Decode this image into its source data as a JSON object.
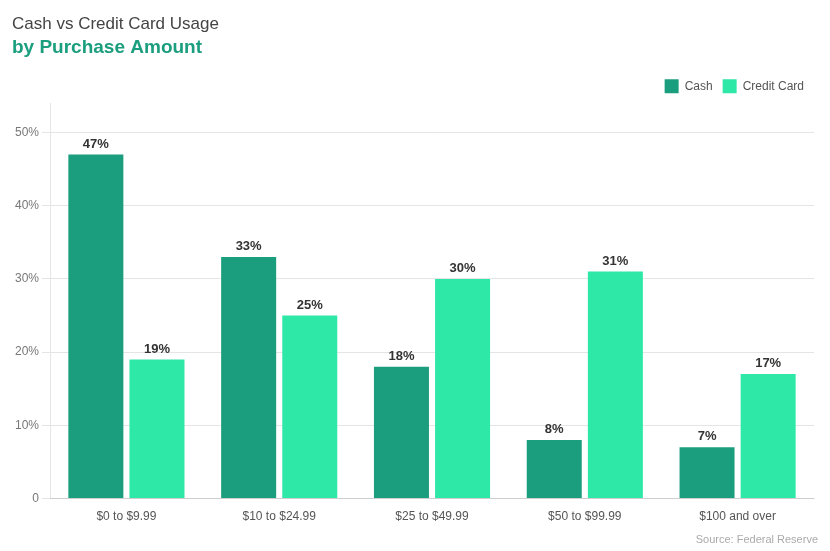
{
  "chart_data": {
    "type": "bar",
    "title": "Cash vs Credit Card Usage",
    "subtitle": "by Purchase Amount",
    "categories": [
      "$0 to $9.99",
      "$10 to $24.99",
      "$25 to $49.99",
      "$50 to $99.99",
      "$100 and over"
    ],
    "series": [
      {
        "name": "Cash",
        "color": "#1a9e7e",
        "values": [
          47,
          33,
          18,
          8,
          7
        ],
        "value_labels": [
          "47%",
          "33%",
          "18%",
          "8%",
          "7%"
        ]
      },
      {
        "name": "Credit Card",
        "color": "#2de8a6",
        "values": [
          19,
          25,
          30,
          31,
          17
        ],
        "value_labels": [
          "19%",
          "25%",
          "30%",
          "31%",
          "17%"
        ]
      }
    ],
    "ylim": [
      0,
      54
    ],
    "yticks": [
      0,
      {
        "value": 10,
        "label": "10%"
      },
      {
        "value": 20,
        "label": "20%"
      },
      {
        "value": 30,
        "label": "30%"
      },
      {
        "value": 40,
        "label": "40%"
      },
      {
        "value": 50,
        "label": "50%"
      }
    ],
    "grid": true,
    "legend": "upper right",
    "data_labels": true,
    "annotations": [
      "Source: Federal Reserve"
    ]
  }
}
